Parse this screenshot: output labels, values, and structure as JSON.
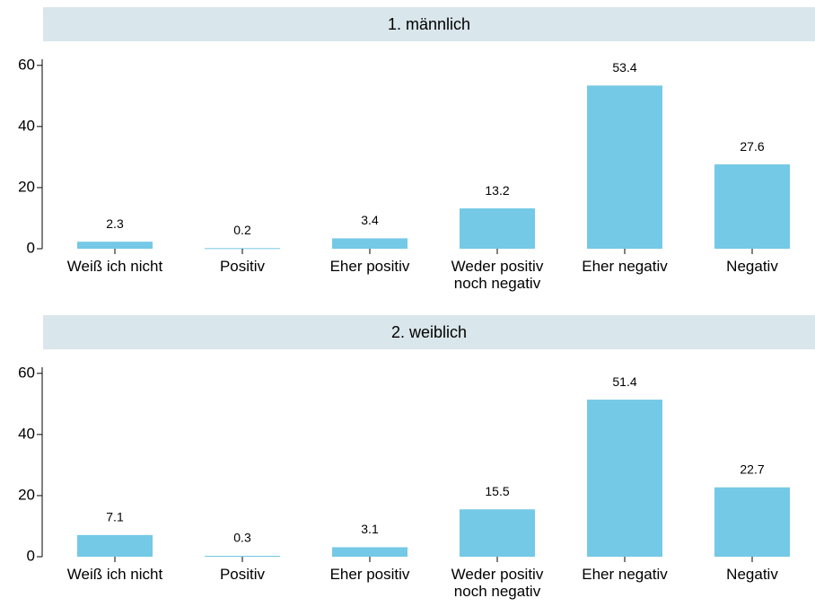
{
  "chart_data": [
    {
      "type": "bar",
      "title": "1. männlich",
      "categories": [
        "Weiß ich nicht",
        "Positiv",
        "Eher positiv",
        "Weder positiv noch negativ",
        "Eher negativ",
        "Negativ"
      ],
      "values": [
        2.3,
        0.2,
        3.4,
        13.2,
        53.4,
        27.6
      ],
      "color": "#74c9e6",
      "ylim": [
        0,
        62
      ],
      "yticks": [
        0,
        20,
        40,
        60
      ]
    },
    {
      "type": "bar",
      "title": "2. weiblich",
      "categories": [
        "Weiß ich nicht",
        "Positiv",
        "Eher positiv",
        "Weder positiv noch negativ",
        "Eher negativ",
        "Negativ"
      ],
      "values": [
        7.1,
        0.3,
        3.1,
        15.5,
        51.4,
        22.7
      ],
      "color": "#74c9e6",
      "ylim": [
        0,
        62
      ],
      "yticks": [
        0,
        20,
        40,
        60
      ]
    }
  ]
}
